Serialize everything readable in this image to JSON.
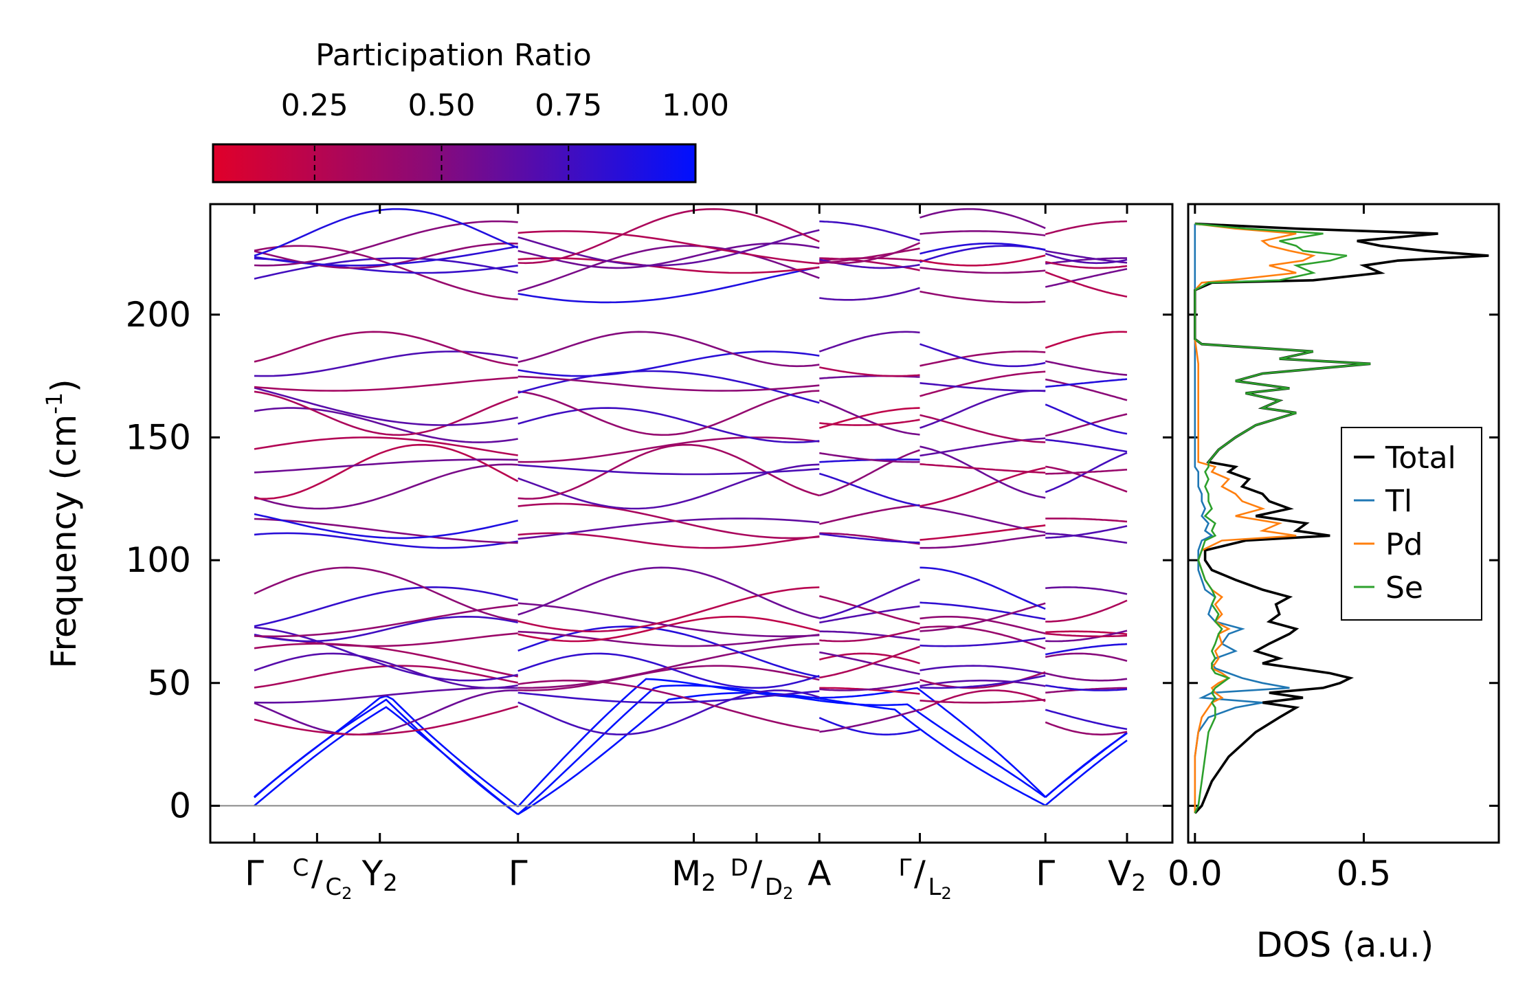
{
  "chart_data": [
    {
      "type": "line",
      "subtype": "phonon-band-structure",
      "title": "",
      "ylabel": "Frequency (cm",
      "ylabel_sup": "-1",
      "ylabel_close": ")",
      "ylim": [
        -15,
        245
      ],
      "yticks": [
        0,
        50,
        100,
        150,
        200
      ],
      "xlim": [
        0,
        10
      ],
      "kpoints": [
        {
          "x": 0,
          "label": "Γ",
          "sub": ""
        },
        {
          "x": 0.5,
          "label": "",
          "sub": ""
        },
        {
          "x": 1.0,
          "label": "Y",
          "sub": "2"
        },
        {
          "x": 2.1,
          "label": "Γ",
          "sub": ""
        },
        {
          "x": 3.5,
          "label": "M",
          "sub": "2"
        },
        {
          "x": 4.0,
          "label": "",
          "sub": ""
        },
        {
          "x": 4.5,
          "label": "A",
          "sub": ""
        },
        {
          "x": 5.3,
          "label": "",
          "sub": ""
        },
        {
          "x": 6.3,
          "label": "Γ",
          "sub": ""
        },
        {
          "x": 6.95,
          "label": "V",
          "sub": "2"
        }
      ],
      "split_labels": [
        {
          "x": 0.5,
          "top": "C",
          "bottom": "C",
          "bottom_sub": "2"
        },
        {
          "x": 4.0,
          "top": "D",
          "bottom": "D",
          "bottom_sub": "2"
        },
        {
          "x": 5.3,
          "top": "Γ",
          "bottom": "L",
          "bottom_sub": "2"
        }
      ],
      "segments": [
        [
          0,
          2.1
        ],
        [
          2.1,
          4.5
        ],
        [
          4.5,
          5.3
        ],
        [
          5.3,
          6.3
        ],
        [
          6.3,
          6.95
        ]
      ],
      "bands_ref_freqs": [
        0,
        0,
        0,
        38,
        40,
        45,
        52,
        55,
        57,
        62,
        68,
        72,
        76,
        80,
        86,
        108,
        112,
        116,
        130,
        136,
        138,
        145,
        155,
        160,
        166,
        172,
        180,
        186,
        214,
        217,
        220,
        224,
        227,
        229,
        232
      ],
      "colorbar": {
        "label": "Participation Ratio",
        "ticks": [
          "0.25",
          "0.50",
          "0.75",
          "1.00"
        ],
        "range": [
          0.05,
          1.0
        ],
        "color_low": "#e0002a",
        "color_mid": "#8a0a78",
        "color_high": "#0010ff"
      },
      "zero_line_color": "#888888"
    },
    {
      "type": "line",
      "subtype": "density-of-states",
      "xlabel": "DOS (a.u.)",
      "xlim": [
        -0.02,
        0.9
      ],
      "xticks": [
        "0.0",
        "0.5"
      ],
      "xtick_values": [
        0.0,
        0.5
      ],
      "ylim": [
        -15,
        245
      ],
      "series": [
        {
          "name": "Total",
          "color": "#000000",
          "freq": [
            -3,
            0,
            10,
            20,
            30,
            36,
            40,
            42,
            44,
            46,
            48,
            50,
            52,
            54,
            56,
            58,
            60,
            63,
            66,
            70,
            72,
            75,
            78,
            82,
            85,
            88,
            92,
            96,
            100,
            104,
            108,
            110,
            112,
            115,
            118,
            121,
            124,
            127,
            130,
            133,
            136,
            138,
            140,
            145,
            150,
            155,
            160,
            162,
            165,
            168,
            170,
            173,
            176,
            180,
            182,
            185,
            188,
            190,
            200,
            210,
            213,
            214,
            217,
            220,
            222,
            224,
            226,
            228,
            230,
            233,
            235,
            237
          ],
          "dos": [
            0.0,
            0.02,
            0.05,
            0.1,
            0.18,
            0.25,
            0.3,
            0.2,
            0.32,
            0.22,
            0.38,
            0.43,
            0.46,
            0.4,
            0.3,
            0.2,
            0.25,
            0.18,
            0.22,
            0.28,
            0.3,
            0.22,
            0.25,
            0.24,
            0.28,
            0.2,
            0.12,
            0.05,
            0.03,
            0.03,
            0.15,
            0.4,
            0.3,
            0.33,
            0.18,
            0.28,
            0.22,
            0.2,
            0.14,
            0.16,
            0.1,
            0.12,
            0.04,
            0.07,
            0.12,
            0.18,
            0.3,
            0.2,
            0.25,
            0.15,
            0.28,
            0.12,
            0.2,
            0.52,
            0.25,
            0.35,
            0.02,
            0.0,
            0.0,
            0.0,
            0.05,
            0.35,
            0.55,
            0.5,
            0.6,
            0.87,
            0.68,
            0.55,
            0.48,
            0.72,
            0.3,
            0.0
          ]
        },
        {
          "name": "Tl",
          "color": "#1f77b4",
          "freq": [
            -3,
            0,
            10,
            20,
            30,
            36,
            40,
            42,
            44,
            46,
            48,
            50,
            52,
            54,
            56,
            58,
            60,
            63,
            66,
            70,
            72,
            75,
            78,
            82,
            85,
            88,
            92,
            96,
            100,
            104,
            108,
            110,
            112,
            115,
            118,
            121,
            124,
            127,
            130,
            133,
            136,
            138,
            140,
            150,
            160,
            170,
            180,
            190,
            200,
            213,
            220,
            230,
            237
          ],
          "dos": [
            0.0,
            0.0,
            0.0,
            0.0,
            0.01,
            0.04,
            0.12,
            0.2,
            0.02,
            0.05,
            0.28,
            0.2,
            0.14,
            0.1,
            0.06,
            0.05,
            0.06,
            0.12,
            0.08,
            0.1,
            0.14,
            0.06,
            0.04,
            0.05,
            0.06,
            0.03,
            0.02,
            0.01,
            0.01,
            0.01,
            0.02,
            0.05,
            0.03,
            0.04,
            0.02,
            0.03,
            0.02,
            0.02,
            0.01,
            0.01,
            0.01,
            0.0,
            0.0,
            0.0,
            0.0,
            0.0,
            0.0,
            0.0,
            0.0,
            0.0,
            0.0,
            0.0,
            0.0
          ]
        },
        {
          "name": "Pd",
          "color": "#ff7f0e",
          "freq": [
            -3,
            0,
            10,
            20,
            30,
            36,
            40,
            42,
            44,
            46,
            48,
            50,
            52,
            54,
            56,
            58,
            60,
            63,
            66,
            70,
            72,
            75,
            78,
            82,
            85,
            88,
            92,
            96,
            100,
            104,
            108,
            110,
            112,
            115,
            118,
            121,
            124,
            127,
            130,
            133,
            136,
            138,
            140,
            150,
            160,
            170,
            180,
            190,
            200,
            210,
            213,
            214,
            217,
            220,
            222,
            224,
            226,
            228,
            230,
            233,
            235,
            237
          ],
          "dos": [
            0.0,
            0.0,
            0.0,
            0.0,
            0.01,
            0.02,
            0.04,
            0.05,
            0.08,
            0.06,
            0.05,
            0.07,
            0.1,
            0.08,
            0.05,
            0.06,
            0.07,
            0.06,
            0.08,
            0.07,
            0.1,
            0.06,
            0.08,
            0.06,
            0.08,
            0.05,
            0.03,
            0.02,
            0.01,
            0.02,
            0.08,
            0.3,
            0.2,
            0.25,
            0.12,
            0.2,
            0.14,
            0.12,
            0.08,
            0.1,
            0.05,
            0.06,
            0.01,
            0.01,
            0.01,
            0.01,
            0.01,
            0.0,
            0.0,
            0.0,
            0.02,
            0.1,
            0.3,
            0.22,
            0.32,
            0.35,
            0.28,
            0.22,
            0.2,
            0.3,
            0.12,
            0.0
          ]
        },
        {
          "name": "Se",
          "color": "#2ca02c",
          "freq": [
            -3,
            0,
            10,
            20,
            30,
            36,
            40,
            42,
            44,
            46,
            48,
            50,
            52,
            54,
            56,
            58,
            60,
            63,
            66,
            70,
            72,
            75,
            78,
            82,
            85,
            88,
            92,
            96,
            100,
            104,
            108,
            110,
            112,
            115,
            118,
            121,
            124,
            127,
            130,
            133,
            136,
            138,
            140,
            145,
            150,
            155,
            160,
            162,
            165,
            168,
            170,
            173,
            176,
            180,
            182,
            185,
            188,
            190,
            200,
            210,
            213,
            214,
            217,
            220,
            222,
            224,
            226,
            228,
            230,
            233,
            235,
            237
          ],
          "dos": [
            0.0,
            0.01,
            0.02,
            0.03,
            0.04,
            0.06,
            0.06,
            0.05,
            0.06,
            0.05,
            0.06,
            0.08,
            0.1,
            0.06,
            0.05,
            0.05,
            0.06,
            0.05,
            0.06,
            0.07,
            0.08,
            0.06,
            0.07,
            0.05,
            0.06,
            0.05,
            0.03,
            0.02,
            0.01,
            0.02,
            0.03,
            0.06,
            0.05,
            0.06,
            0.03,
            0.05,
            0.04,
            0.04,
            0.03,
            0.04,
            0.03,
            0.04,
            0.04,
            0.07,
            0.12,
            0.18,
            0.3,
            0.2,
            0.25,
            0.15,
            0.28,
            0.12,
            0.2,
            0.52,
            0.25,
            0.35,
            0.02,
            0.0,
            0.0,
            0.0,
            0.04,
            0.25,
            0.35,
            0.3,
            0.4,
            0.45,
            0.32,
            0.3,
            0.25,
            0.38,
            0.15,
            0.0
          ]
        }
      ],
      "legend": {
        "placement": "center-right"
      }
    }
  ]
}
